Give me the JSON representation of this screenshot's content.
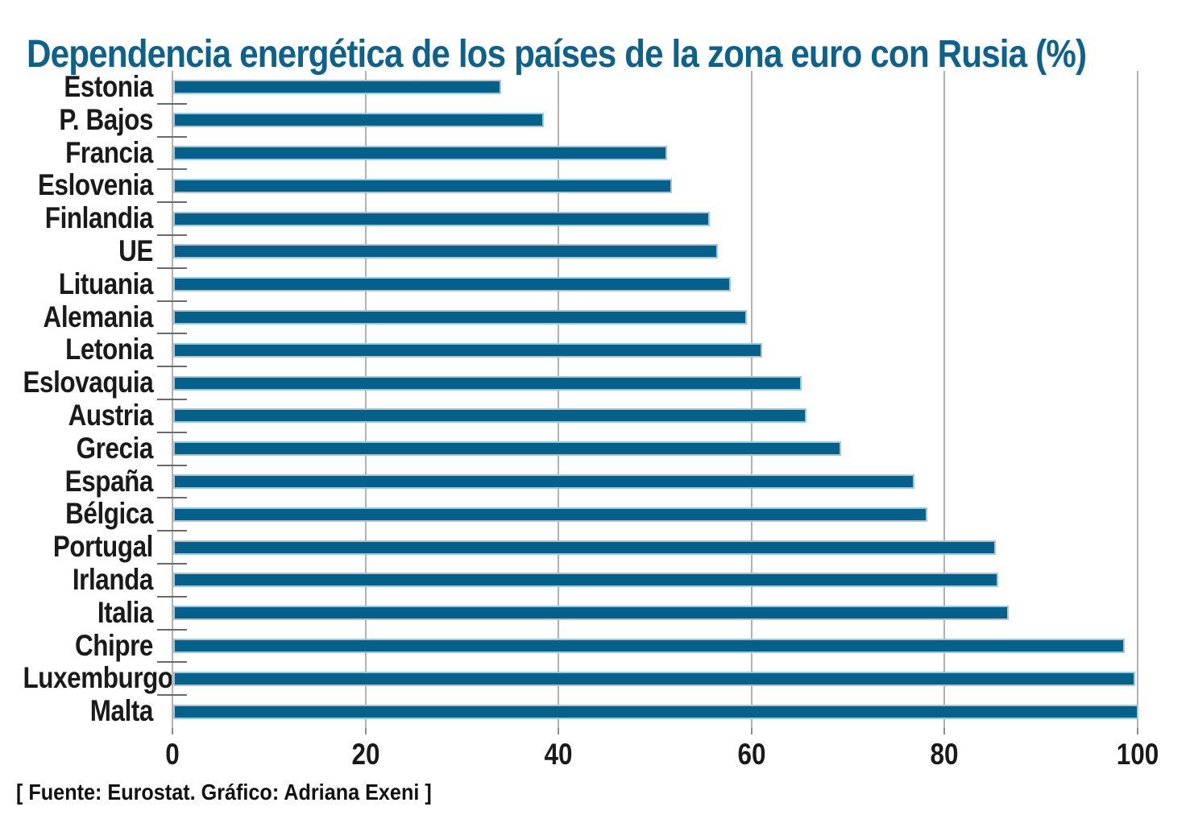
{
  "title": "Dependencia energética de los países de la zona euro con Rusia (%)",
  "source": {
    "text": "[ Fuente: Eurostat. Gráfico: Adriana Exeni ]"
  },
  "colors": {
    "title": "#0e6289",
    "bar_fill": "#05608a",
    "bar_border": "#a3c7d8",
    "gridline": "#b2b2b2",
    "axis_text": "#1a1a1a"
  },
  "chart_data": {
    "type": "bar",
    "orientation": "horizontal",
    "title": "Dependencia energética de los países de la zona euro con Rusia (%)",
    "categories": [
      "Estonia",
      "P. Bajos",
      "Francia",
      "Eslovenia",
      "Finlandia",
      "UE",
      "Lituania",
      "Alemania",
      "Letonia",
      "Eslovaquia",
      "Austria",
      "Grecia",
      "España",
      "Bélgica",
      "Portugal",
      "Irlanda",
      "Italia",
      "Chipre",
      "Luxemburgo",
      "Malta"
    ],
    "values": [
      34.0,
      38.4,
      51.2,
      51.7,
      55.6,
      56.4,
      57.8,
      59.4,
      61.0,
      65.1,
      65.6,
      69.2,
      76.8,
      78.1,
      85.2,
      85.5,
      86.6,
      98.6,
      99.7,
      100.0
    ],
    "xlabel": "",
    "ylabel": "",
    "xlim": [
      0,
      100
    ],
    "xticks": [
      0,
      20,
      40,
      60,
      80,
      100
    ],
    "grid": "vertical-only",
    "legend": "none",
    "source_note": "[ Fuente: Eurostat. Gráfico: Adriana Exeni ]"
  }
}
